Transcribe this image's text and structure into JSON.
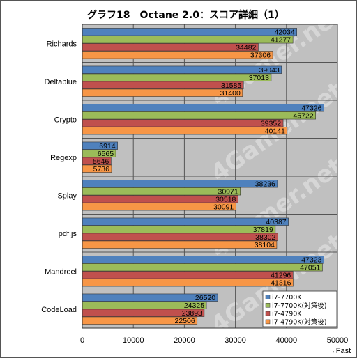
{
  "chart_data": {
    "type": "bar",
    "orientation": "horizontal",
    "title": "グラフ18　Octane 2.0：スコア詳細（1）",
    "categories": [
      "Richards",
      "Deltablue",
      "Crypto",
      "Regexp",
      "Splay",
      "pdf.js",
      "Mandreel",
      "CodeLoad"
    ],
    "series": [
      {
        "name": "i7-7700K",
        "color": "#4f81bd",
        "values": [
          42034,
          39043,
          47326,
          6914,
          38236,
          40387,
          47323,
          26520
        ]
      },
      {
        "name": "i7-7700K(対策後)",
        "color": "#9bbb59",
        "values": [
          41277,
          37013,
          45722,
          6565,
          30971,
          37819,
          47051,
          24325
        ]
      },
      {
        "name": "i7-4790K",
        "color": "#c0504d",
        "values": [
          34482,
          31585,
          39352,
          5646,
          30518,
          38302,
          41296,
          23893
        ]
      },
      {
        "name": "i7-4790K(対策後)",
        "color": "#f79646",
        "values": [
          37306,
          31400,
          40141,
          5736,
          30091,
          38104,
          41316,
          22506
        ]
      }
    ],
    "xlim": [
      0,
      50000
    ],
    "xticks": [
      "0",
      "10000",
      "20000",
      "30000",
      "40000",
      "50000"
    ],
    "xlabel": "→Fast",
    "grid": true,
    "legend_position": "bottom-right",
    "watermark": "4Gamer.net",
    "plot_background": "#c0c0c0"
  }
}
